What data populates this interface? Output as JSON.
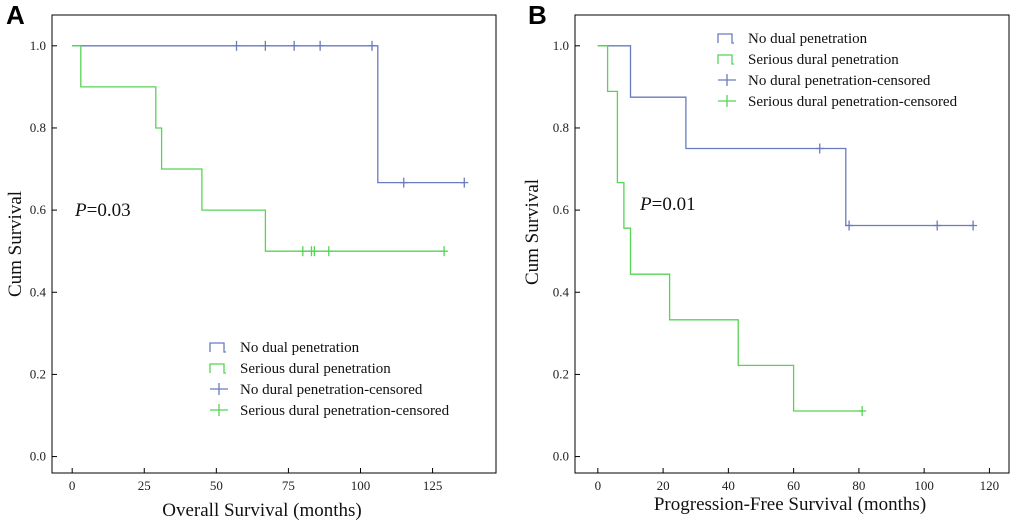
{
  "colors": {
    "no_dural": "#6a7bbf",
    "serious": "#55d455",
    "frame": "#000000"
  },
  "chart_data": [
    {
      "type": "line",
      "panel_label": "A",
      "xlabel": "Overall Survival (months)",
      "ylabel": "Cum Survival",
      "xlim": [
        -7,
        147
      ],
      "ylim": [
        -0.04,
        1.075
      ],
      "xticks": [
        0,
        25,
        50,
        75,
        100,
        125
      ],
      "yticks": [
        0.0,
        0.2,
        0.4,
        0.6,
        0.8,
        1.0
      ],
      "ytick_labels": [
        "0.0",
        "0.2",
        "0.4",
        "0.6",
        "0.8",
        "1.0"
      ],
      "annotation": {
        "italic": "P",
        "rest": "=0.03"
      },
      "legend": [
        "No dual penetration",
        "Serious dural penetration",
        "No dural penetration-censored",
        "Serious dural penetration-censored"
      ],
      "legend_location": "bottom-right",
      "series": [
        {
          "name": "No dual penetration",
          "color_key": "no_dural",
          "x": [
            0,
            106,
            106,
            136
          ],
          "y": [
            1.0,
            1.0,
            0.667,
            0.667
          ],
          "censored_x": [
            57,
            67,
            77,
            86,
            104,
            115,
            136
          ],
          "censored_y": [
            1.0,
            1.0,
            1.0,
            1.0,
            1.0,
            0.667,
            0.667
          ]
        },
        {
          "name": "Serious dural penetration",
          "color_key": "serious",
          "x": [
            0,
            3,
            3,
            29,
            29,
            31,
            31,
            45,
            45,
            67,
            67,
            129
          ],
          "y": [
            1.0,
            1.0,
            0.9,
            0.9,
            0.8,
            0.8,
            0.7,
            0.7,
            0.6,
            0.6,
            0.5,
            0.5
          ],
          "censored_x": [
            80,
            83,
            84,
            89,
            129
          ],
          "censored_y": [
            0.5,
            0.5,
            0.5,
            0.5,
            0.5
          ]
        }
      ]
    },
    {
      "type": "line",
      "panel_label": "B",
      "xlabel": "Progression-Free Survival (months)",
      "ylabel": "Cum Survival",
      "xlim": [
        -7,
        126
      ],
      "ylim": [
        -0.04,
        1.075
      ],
      "xticks": [
        0,
        20,
        40,
        60,
        80,
        100,
        120
      ],
      "yticks": [
        0.0,
        0.2,
        0.4,
        0.6,
        0.8,
        1.0
      ],
      "ytick_labels": [
        "0.0",
        "0.2",
        "0.4",
        "0.6",
        "0.8",
        "1.0"
      ],
      "annotation": {
        "italic": "P",
        "rest": "=0.01"
      },
      "legend": [
        "No dual penetration",
        "Serious dural penetration",
        "No dural penetration-censored",
        "Serious dural penetration-censored"
      ],
      "legend_location": "top-right",
      "series": [
        {
          "name": "No dual penetration",
          "color_key": "no_dural",
          "x": [
            0,
            10,
            10,
            27,
            27,
            76,
            76,
            115
          ],
          "y": [
            1.0,
            1.0,
            0.875,
            0.875,
            0.75,
            0.75,
            0.5625,
            0.5625
          ],
          "censored_x": [
            68,
            77,
            104,
            115
          ],
          "censored_y": [
            0.75,
            0.5625,
            0.5625,
            0.5625
          ]
        },
        {
          "name": "Serious dural penetration",
          "color_key": "serious",
          "x": [
            0,
            3,
            3,
            6,
            6,
            8,
            8,
            10,
            10,
            22,
            22,
            43,
            43,
            60,
            60,
            81
          ],
          "y": [
            1.0,
            1.0,
            0.889,
            0.889,
            0.667,
            0.667,
            0.556,
            0.556,
            0.444,
            0.444,
            0.333,
            0.333,
            0.222,
            0.222,
            0.111,
            0.111
          ],
          "censored_x": [
            81
          ],
          "censored_y": [
            0.111
          ]
        }
      ]
    }
  ]
}
